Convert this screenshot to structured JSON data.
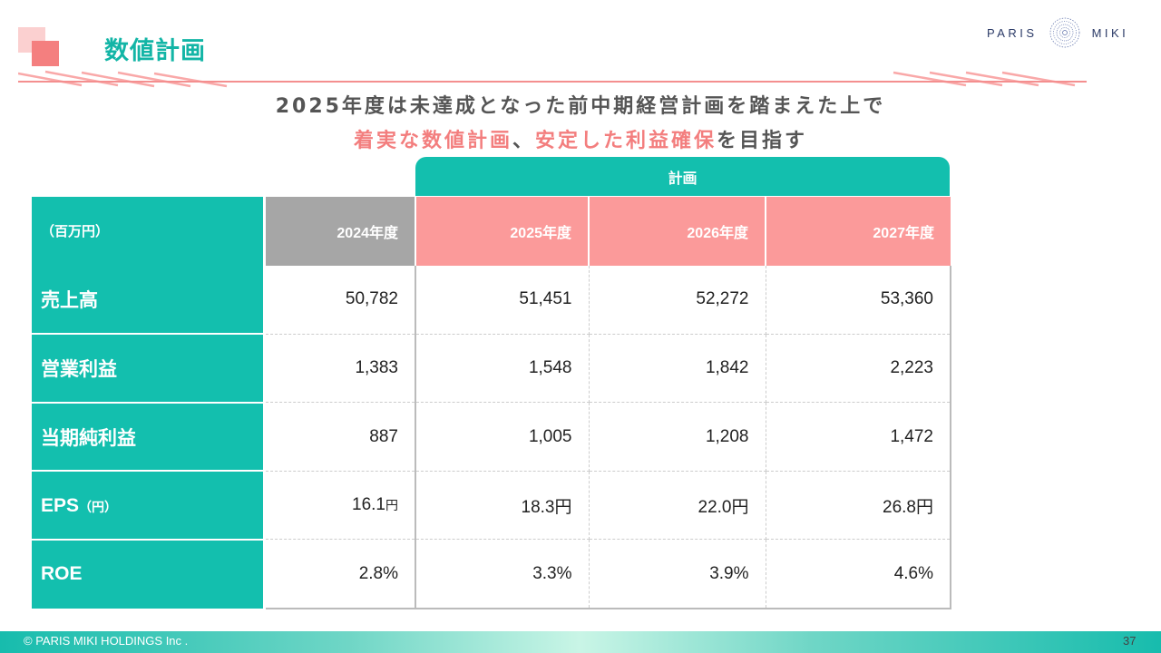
{
  "slide": {
    "title": "数値計画",
    "page_number": "37",
    "copyright": "© PARIS MIKI HOLDINGS Inc .",
    "accent_color": "#13bfae",
    "highlight_color": "#f37e7e"
  },
  "logo": {
    "left": "PARIS",
    "right": "MIKI"
  },
  "headline": {
    "line1": "2025年度は未達成となった前中期経営計画を踏まえた上で",
    "line2_a": "着実な数値計画",
    "line2_b": "、",
    "line2_c": "安定した利益確保",
    "line2_d": "を目指す"
  },
  "table": {
    "plan_label": "計画",
    "unit_label": "（百万円）",
    "years": [
      "2024年度",
      "2025年度",
      "2026年度",
      "2027年度"
    ],
    "rows": [
      {
        "label": "売上高",
        "values": [
          "50,782",
          "51,451",
          "52,272",
          "53,360"
        ]
      },
      {
        "label": "営業利益",
        "values": [
          "1,383",
          "1,548",
          "1,842",
          "2,223"
        ]
      },
      {
        "label": "当期純利益",
        "values": [
          "887",
          "1,005",
          "1,208",
          "1,472"
        ]
      },
      {
        "label": "EPS",
        "label_suffix": "（円）",
        "values": [
          "16.1",
          "18.3",
          "22.0",
          "26.8"
        ],
        "value_suffix": "円"
      },
      {
        "label": "ROE",
        "values": [
          "2.8%",
          "3.3%",
          "3.9%",
          "4.6%"
        ]
      }
    ]
  }
}
